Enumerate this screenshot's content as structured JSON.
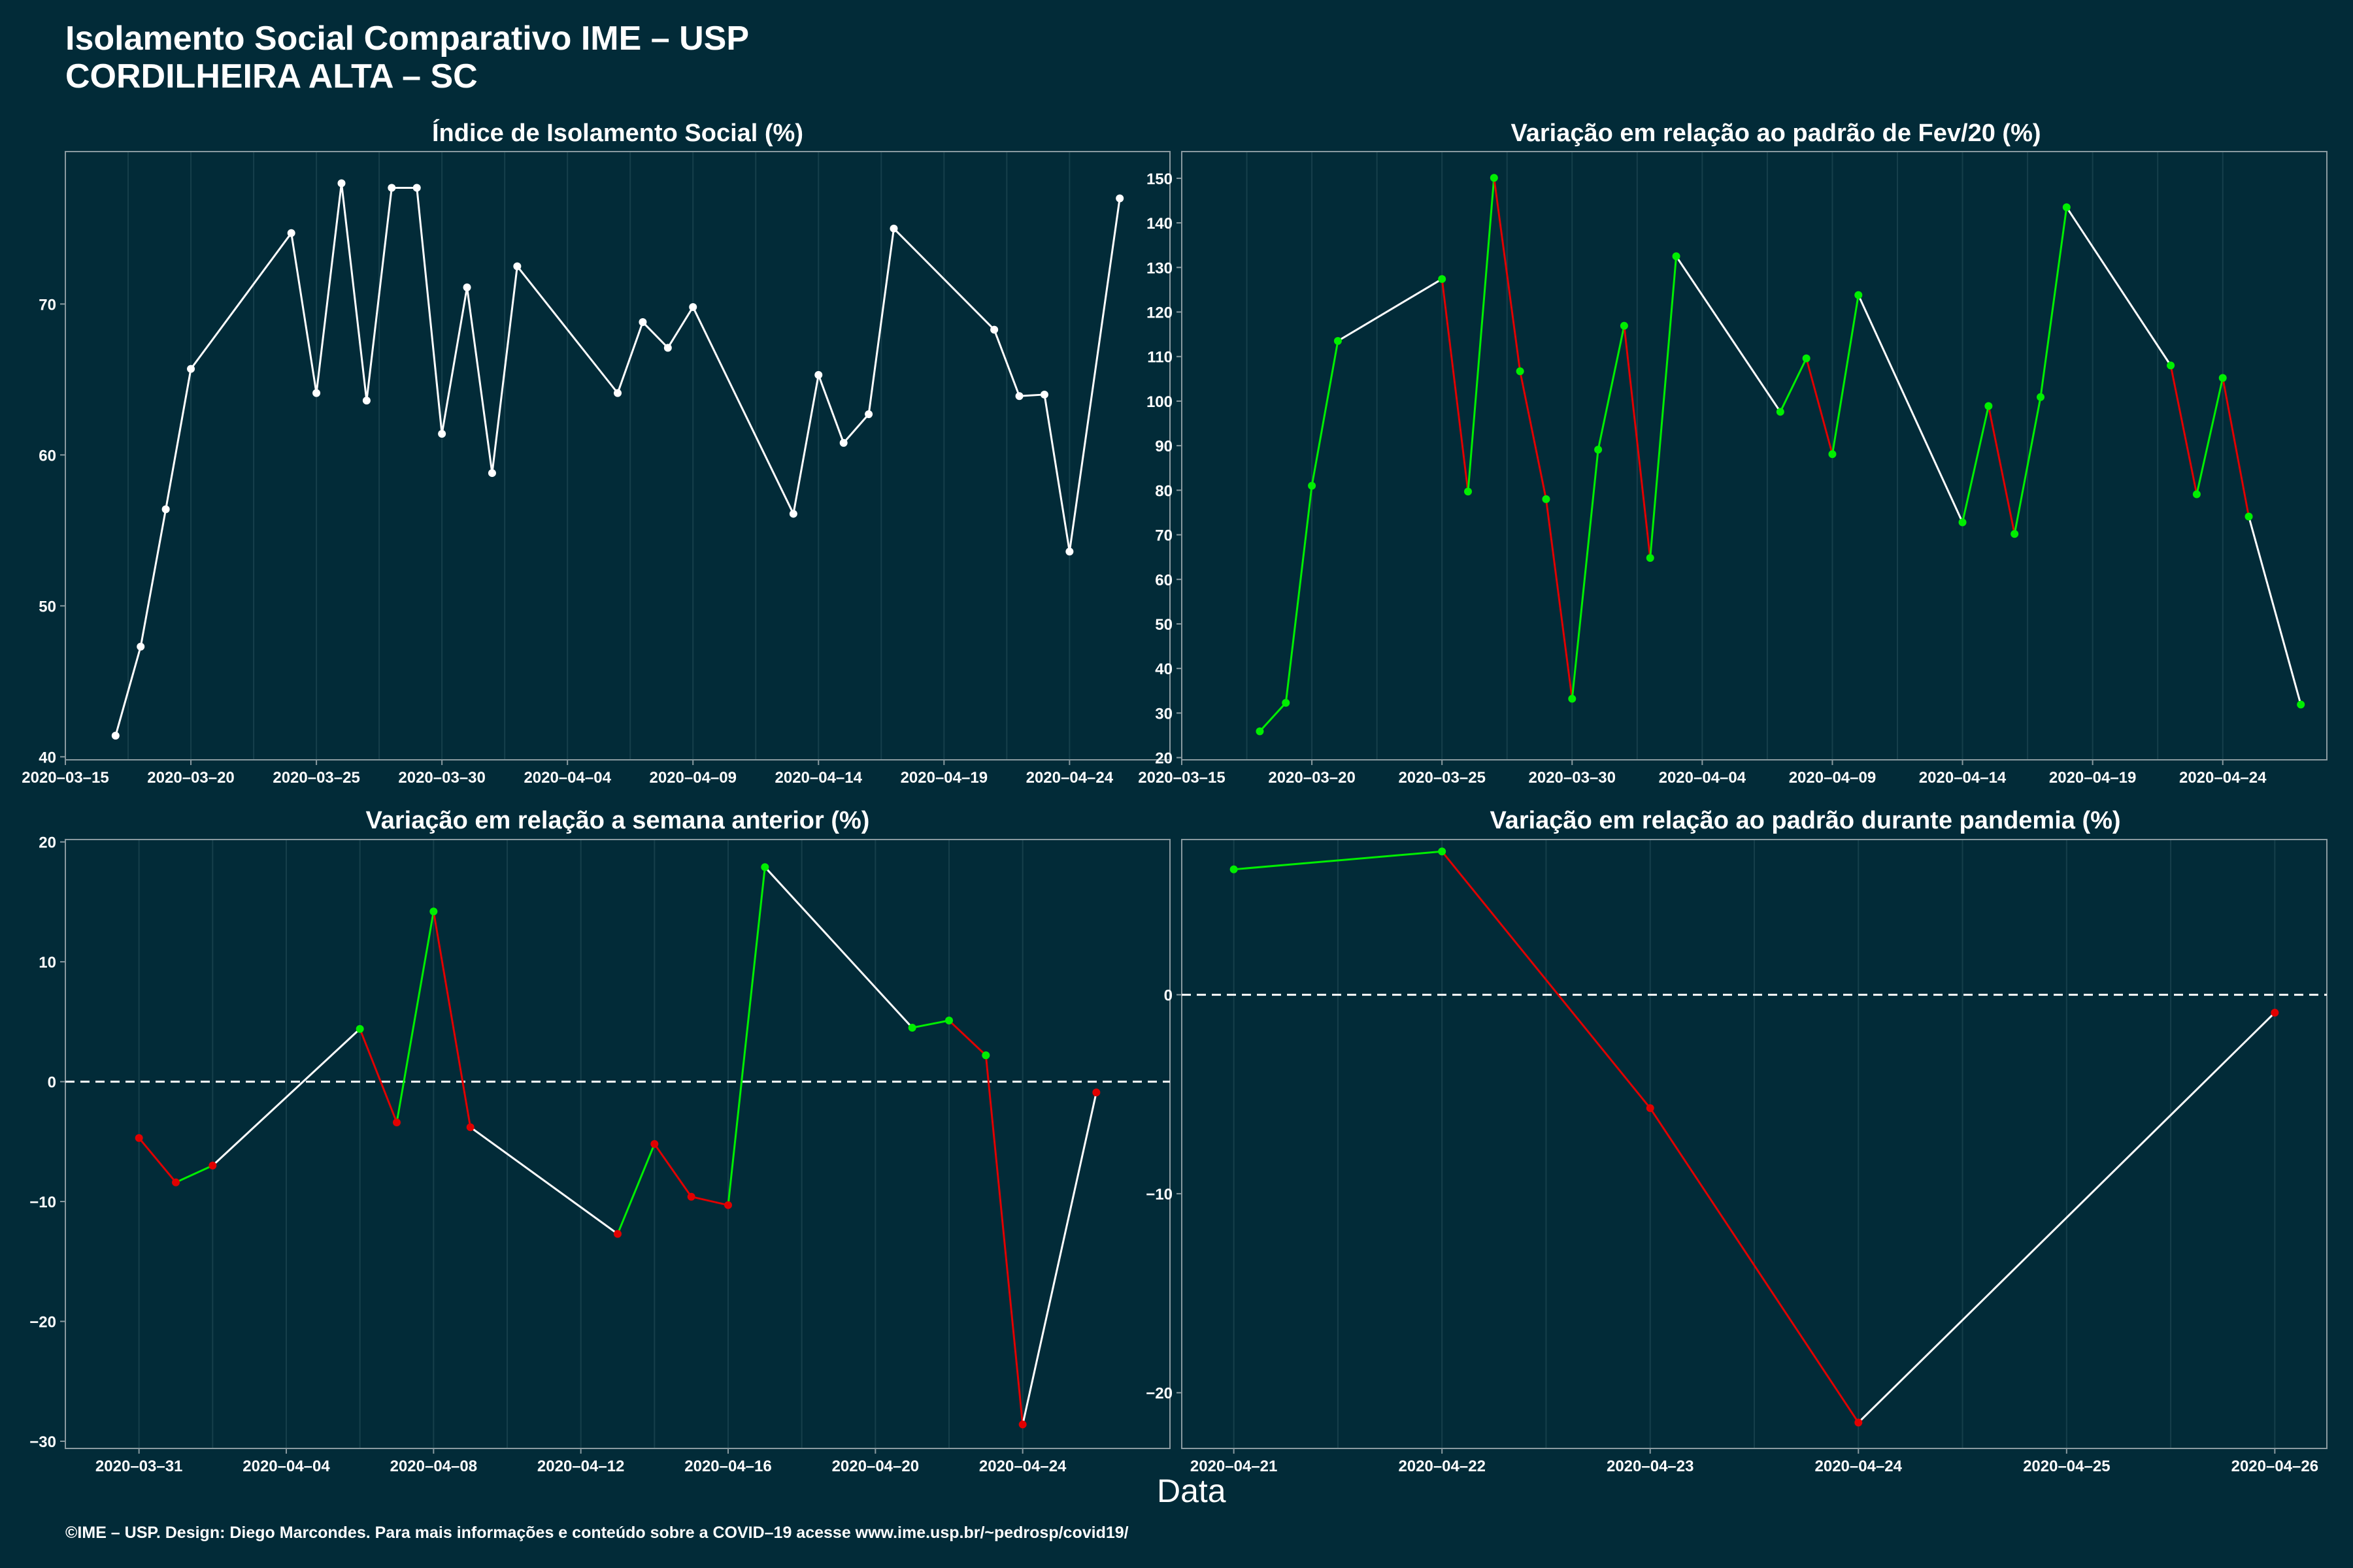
{
  "header": {
    "title": "Isolamento Social Comparativo IME – USP",
    "subtitle": "CORDILHEIRA ALTA – SC"
  },
  "footer": "©IME – USP. Design: Diego Marcondes. Para mais informações e conteúdo sobre a COVID–19 acesse www.ime.usp.br/~pedrosp/covid19/",
  "xlabel": "Data",
  "colors": {
    "background": "#022b38",
    "line": "#ffffff",
    "up": "#00ee00",
    "down": "#e00000",
    "frame": "#8a9aa0"
  },
  "chart_data": [
    {
      "type": "line",
      "title": "Índice de Isolamento Social (%)",
      "xlabel": "Data",
      "ylabel": "",
      "color_mode": "white",
      "xlim": [
        "2020-03-15",
        "2020-04-28"
      ],
      "ylim": [
        39.8,
        80.1
      ],
      "xticks": [
        "2020-03-15",
        "2020-03-20",
        "2020-03-25",
        "2020-03-30",
        "2020-04-04",
        "2020-04-09",
        "2020-04-14",
        "2020-04-19",
        "2020-04-24"
      ],
      "xtick_labels": [
        "2020–03–15",
        "2020–03–20",
        "2020–03–25",
        "2020–03–30",
        "2020–04–04",
        "2020–04–09",
        "2020–04–14",
        "2020–04–19",
        "2020–04–24"
      ],
      "yticks": [
        40,
        50,
        60,
        70
      ],
      "ytick_labels": [
        "40",
        "50",
        "60",
        "70"
      ],
      "ref_line": null,
      "points": [
        [
          "2020-03-17",
          41.4
        ],
        [
          "2020-03-18",
          47.3
        ],
        [
          "2020-03-19",
          56.4
        ],
        [
          "2020-03-20",
          65.7
        ],
        [
          "2020-03-24",
          74.7
        ],
        [
          "2020-03-25",
          64.1
        ],
        [
          "2020-03-26",
          78.0
        ],
        [
          "2020-03-27",
          63.6
        ],
        [
          "2020-03-28",
          77.7
        ],
        [
          "2020-03-29",
          77.7
        ],
        [
          "2020-03-30",
          61.4
        ],
        [
          "2020-03-31",
          71.1
        ],
        [
          "2020-04-01",
          58.8
        ],
        [
          "2020-04-02",
          72.5
        ],
        [
          "2020-04-06",
          64.1
        ],
        [
          "2020-04-07",
          68.8
        ],
        [
          "2020-04-08",
          67.1
        ],
        [
          "2020-04-09",
          69.8
        ],
        [
          "2020-04-13",
          56.1
        ],
        [
          "2020-04-14",
          65.3
        ],
        [
          "2020-04-15",
          60.8
        ],
        [
          "2020-04-16",
          62.7
        ],
        [
          "2020-04-17",
          75.0
        ],
        [
          "2020-04-21",
          68.3
        ],
        [
          "2020-04-22",
          63.9
        ],
        [
          "2020-04-23",
          64.0
        ],
        [
          "2020-04-24",
          53.6
        ],
        [
          "2020-04-26",
          77.0
        ]
      ]
    },
    {
      "type": "line",
      "title": "Variação em relação ao padrão de Fev/20 (%)",
      "xlabel": "Data",
      "ylabel": "",
      "color_mode": "trend",
      "xlim": [
        "2020-03-15",
        "2020-04-28"
      ],
      "ylim": [
        19.5,
        156
      ],
      "xticks": [
        "2020-03-15",
        "2020-03-20",
        "2020-03-25",
        "2020-03-30",
        "2020-04-04",
        "2020-04-09",
        "2020-04-14",
        "2020-04-19",
        "2020-04-24"
      ],
      "xtick_labels": [
        "2020–03–15",
        "2020–03–20",
        "2020–03–25",
        "2020–03–30",
        "2020–04–04",
        "2020–04–09",
        "2020–04–14",
        "2020–04–19",
        "2020–04–24"
      ],
      "yticks": [
        20,
        30,
        40,
        50,
        60,
        70,
        80,
        90,
        100,
        110,
        120,
        130,
        140,
        150
      ],
      "ytick_labels": [
        "20",
        "30",
        "40",
        "50",
        "60",
        "70",
        "80",
        "90",
        "100",
        "110",
        "120",
        "130",
        "140",
        "150"
      ],
      "ref_line": null,
      "points": [
        [
          "2020-03-18",
          25.9
        ],
        [
          "2020-03-19",
          32.3
        ],
        [
          "2020-03-20",
          81.0
        ],
        [
          "2020-03-21",
          113.5
        ],
        [
          "2020-03-25",
          127.4
        ],
        [
          "2020-03-26",
          79.7
        ],
        [
          "2020-03-27",
          150.1
        ],
        [
          "2020-03-28",
          106.7
        ],
        [
          "2020-03-29",
          78.0
        ],
        [
          "2020-03-30",
          33.2
        ],
        [
          "2020-03-31",
          89.1
        ],
        [
          "2020-04-01",
          116.9
        ],
        [
          "2020-04-02",
          64.8
        ],
        [
          "2020-04-03",
          132.5
        ],
        [
          "2020-04-07",
          97.6
        ],
        [
          "2020-04-08",
          109.6
        ],
        [
          "2020-04-09",
          88.1
        ],
        [
          "2020-04-10",
          123.8
        ],
        [
          "2020-04-14",
          72.8
        ],
        [
          "2020-04-15",
          98.9
        ],
        [
          "2020-04-16",
          70.2
        ],
        [
          "2020-04-17",
          100.9
        ],
        [
          "2020-04-18",
          143.5
        ],
        [
          "2020-04-22",
          108.0
        ],
        [
          "2020-04-23",
          79.1
        ],
        [
          "2020-04-24",
          105.2
        ],
        [
          "2020-04-25",
          74.1
        ],
        [
          "2020-04-27",
          31.9
        ]
      ]
    },
    {
      "type": "line",
      "title": "Variação em relação a semana anterior (%)",
      "xlabel": "Data",
      "ylabel": "",
      "color_mode": "trend",
      "xlim": [
        "2020-03-29",
        "2020-04-28"
      ],
      "ylim": [
        -30.6,
        20.2
      ],
      "xticks": [
        "2020-03-31",
        "2020-04-04",
        "2020-04-08",
        "2020-04-12",
        "2020-04-16",
        "2020-04-20",
        "2020-04-24"
      ],
      "xtick_labels": [
        "2020–03–31",
        "2020–04–04",
        "2020–04–08",
        "2020–04–12",
        "2020–04–16",
        "2020–04–20",
        "2020–04–24"
      ],
      "yticks": [
        -30,
        -20,
        -10,
        0,
        10,
        20
      ],
      "ytick_labels": [
        "−30",
        "−20",
        "−10",
        "0",
        "10",
        "20"
      ],
      "ref_line": 0,
      "points": [
        [
          "2020-03-31",
          -4.7
        ],
        [
          "2020-04-01",
          -8.4
        ],
        [
          "2020-04-02",
          -7.0
        ],
        [
          "2020-04-06",
          4.4
        ],
        [
          "2020-04-07",
          -3.4
        ],
        [
          "2020-04-08",
          14.2
        ],
        [
          "2020-04-09",
          -3.8
        ],
        [
          "2020-04-13",
          -12.7
        ],
        [
          "2020-04-14",
          -5.2
        ],
        [
          "2020-04-15",
          -9.6
        ],
        [
          "2020-04-16",
          -10.3
        ],
        [
          "2020-04-17",
          17.9
        ],
        [
          "2020-04-21",
          4.5
        ],
        [
          "2020-04-22",
          5.1
        ],
        [
          "2020-04-23",
          2.2
        ],
        [
          "2020-04-24",
          -28.6
        ],
        [
          "2020-04-26",
          -0.9
        ]
      ]
    },
    {
      "type": "line",
      "title": "Variação em relação ao padrão durante pandemia (%)",
      "xlabel": "Data",
      "ylabel": "",
      "color_mode": "trend",
      "xlim": [
        "2020-04-20.75",
        "2020-04-26.25"
      ],
      "ylim": [
        -22.8,
        7.8
      ],
      "xticks": [
        "2020-04-21",
        "2020-04-22",
        "2020-04-23",
        "2020-04-24",
        "2020-04-25",
        "2020-04-26"
      ],
      "xtick_labels": [
        "2020–04–21",
        "2020–04–22",
        "2020–04–23",
        "2020–04–24",
        "2020–04–25",
        "2020–04–26"
      ],
      "yticks": [
        -20,
        -10,
        0
      ],
      "ytick_labels": [
        "−20",
        "−10",
        "0"
      ],
      "ref_line": 0,
      "points": [
        [
          "2020-04-21",
          6.3
        ],
        [
          "2020-04-22",
          7.2
        ],
        [
          "2020-04-23",
          -5.7
        ],
        [
          "2020-04-24",
          -21.5
        ],
        [
          "2020-04-26",
          -0.9
        ]
      ]
    }
  ]
}
